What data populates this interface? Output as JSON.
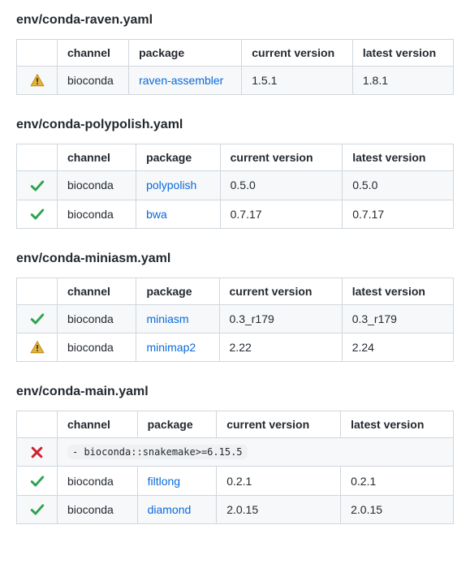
{
  "headers": {
    "channel": "channel",
    "package": "package",
    "current": "current version",
    "latest": "latest version"
  },
  "colors": {
    "link": "#0969da",
    "border": "#d0d7de",
    "stripe": "#f6f8fa",
    "check_fill": "#2da44e",
    "warn_fill": "#e3b341",
    "warn_stroke": "#bf8700",
    "error_fill": "#cf222e",
    "code_bg": "#eff1f3"
  },
  "sections": [
    {
      "title": "env/conda-raven.yaml",
      "rows": [
        {
          "status": "warn",
          "channel": "bioconda",
          "package": "raven-assembler",
          "current": "1.5.1",
          "latest": "1.8.1"
        }
      ]
    },
    {
      "title": "env/conda-polypolish.yaml",
      "rows": [
        {
          "status": "ok",
          "channel": "bioconda",
          "package": "polypolish",
          "current": "0.5.0",
          "latest": "0.5.0"
        },
        {
          "status": "ok",
          "channel": "bioconda",
          "package": "bwa",
          "current": "0.7.17",
          "latest": "0.7.17"
        }
      ]
    },
    {
      "title": "env/conda-miniasm.yaml",
      "rows": [
        {
          "status": "ok",
          "channel": "bioconda",
          "package": "miniasm",
          "current": "0.3_r179",
          "latest": "0.3_r179"
        },
        {
          "status": "warn",
          "channel": "bioconda",
          "package": "minimap2",
          "current": "2.22",
          "latest": "2.24"
        }
      ]
    },
    {
      "title": "env/conda-main.yaml",
      "rows": [
        {
          "status": "error",
          "spanned": true,
          "raw": "  - bioconda::snakemake>=6.15.5"
        },
        {
          "status": "ok",
          "channel": "bioconda",
          "package": "filtlong",
          "current": "0.2.1",
          "latest": "0.2.1"
        },
        {
          "status": "ok",
          "channel": "bioconda",
          "package": "diamond",
          "current": "2.0.15",
          "latest": "2.0.15"
        }
      ]
    }
  ]
}
